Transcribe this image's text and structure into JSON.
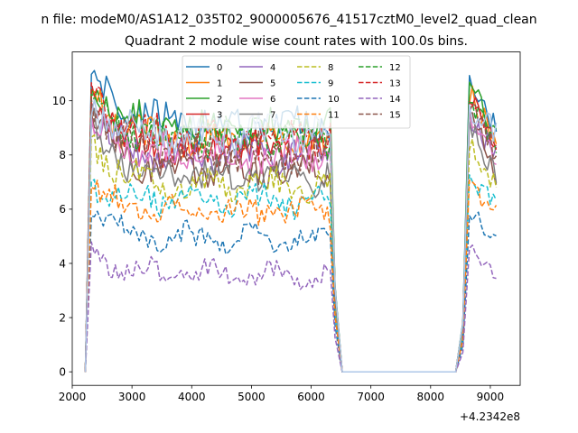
{
  "figure": {
    "suptitle": "n file: modeM0/AS1A12_035T02_9000005676_41517cztM0_level2_quad_clean",
    "offset_label": "+4.2342e8"
  },
  "chart_data": {
    "type": "line",
    "title": "Quadrant 2 module wise count rates with 100.0s bins.",
    "xlabel": "",
    "ylabel": "",
    "xlim": [
      2000,
      9500
    ],
    "ylim": [
      -0.5,
      11.8
    ],
    "x_ticks": [
      2000,
      3000,
      4000,
      5000,
      6000,
      7000,
      8000,
      9000
    ],
    "y_ticks": [
      0,
      2,
      4,
      6,
      8,
      10
    ],
    "x_offset": "+4.2342e8",
    "grid": false,
    "legend": {
      "placement": "upper-center",
      "columns": 4
    },
    "shape": {
      "rise_x": [
        2220,
        2320
      ],
      "active_segments": [
        [
          2320,
          6360
        ],
        [
          8650,
          9130
        ]
      ],
      "drop_x": [
        6360,
        6520
      ],
      "flat_x": [
        6520,
        8420
      ],
      "rise2_x": [
        8420,
        8650
      ]
    },
    "series": [
      {
        "name": "0",
        "color": "#1f77b4",
        "style": "solid",
        "level": 9.1,
        "peak": 10.9
      },
      {
        "name": "1",
        "color": "#ff7f0e",
        "style": "solid",
        "level": 8.5,
        "peak": 10.3
      },
      {
        "name": "2",
        "color": "#2ca02c",
        "style": "solid",
        "level": 8.9,
        "peak": 10.5
      },
      {
        "name": "3",
        "color": "#d62728",
        "style": "solid",
        "level": 8.2,
        "peak": 10.2
      },
      {
        "name": "4",
        "color": "#9467bd",
        "style": "solid",
        "level": 8.0,
        "peak": 9.5
      },
      {
        "name": "5",
        "color": "#8c564b",
        "style": "solid",
        "level": 7.4,
        "peak": 9.6
      },
      {
        "name": "6",
        "color": "#e377c2",
        "style": "solid",
        "level": 8.0,
        "peak": 9.2
      },
      {
        "name": "7",
        "color": "#7f7f7f",
        "style": "solid",
        "level": 7.2,
        "peak": 9.2
      },
      {
        "name": "8",
        "color": "#bcbd22",
        "style": "dashed",
        "level": 6.9,
        "peak": 8.5
      },
      {
        "name": "9",
        "color": "#17becf",
        "style": "dashed",
        "level": 6.3,
        "peak": 7.1
      },
      {
        "name": "10",
        "color": "#1f77b4",
        "style": "dashed",
        "level": 4.9,
        "peak": 5.9
      },
      {
        "name": "11",
        "color": "#ff7f0e",
        "style": "dashed",
        "level": 5.9,
        "peak": 6.8
      },
      {
        "name": "12",
        "color": "#2ca02c",
        "style": "dashed",
        "level": 8.6,
        "peak": 10.0
      },
      {
        "name": "13",
        "color": "#d62728",
        "style": "dashed",
        "level": 8.6,
        "peak": 10.2
      },
      {
        "name": "14",
        "color": "#9467bd",
        "style": "dashed",
        "level": 3.6,
        "peak": 4.5
      },
      {
        "name": "15",
        "color": "#8c564b",
        "style": "dashed",
        "level": 8.1,
        "peak": 9.9
      }
    ],
    "extra_series": [
      {
        "color": "#aec7e8",
        "style": "solid",
        "level": 8.8,
        "peak": 9.8
      }
    ]
  }
}
